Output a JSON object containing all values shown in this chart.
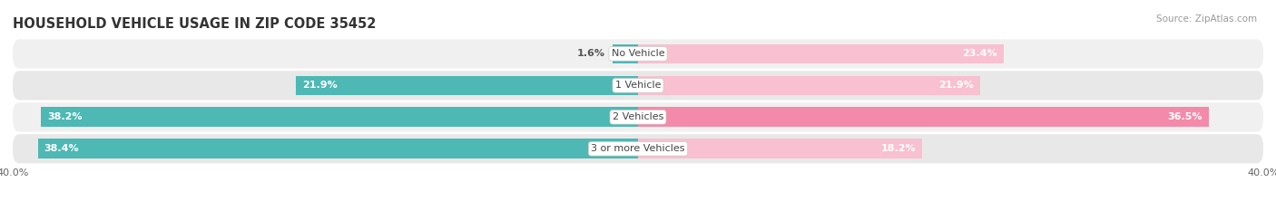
{
  "title": "HOUSEHOLD VEHICLE USAGE IN ZIP CODE 35452",
  "source": "Source: ZipAtlas.com",
  "categories": [
    "No Vehicle",
    "1 Vehicle",
    "2 Vehicles",
    "3 or more Vehicles"
  ],
  "owner_values": [
    1.6,
    21.9,
    38.2,
    38.4
  ],
  "renter_values": [
    23.4,
    21.9,
    36.5,
    18.2
  ],
  "owner_color": "#4db8b4",
  "renter_color": "#f48aaa",
  "renter_color_light": "#f8c0d0",
  "axis_limit": 40.0,
  "bar_height": 0.62,
  "title_fontsize": 10.5,
  "label_fontsize": 8.0,
  "tick_fontsize": 8.0,
  "source_fontsize": 7.5,
  "legend_fontsize": 8.0,
  "background_color": "#ffffff",
  "row_bg_light": "#efefef",
  "row_bg_dark": "#e2e2e2"
}
